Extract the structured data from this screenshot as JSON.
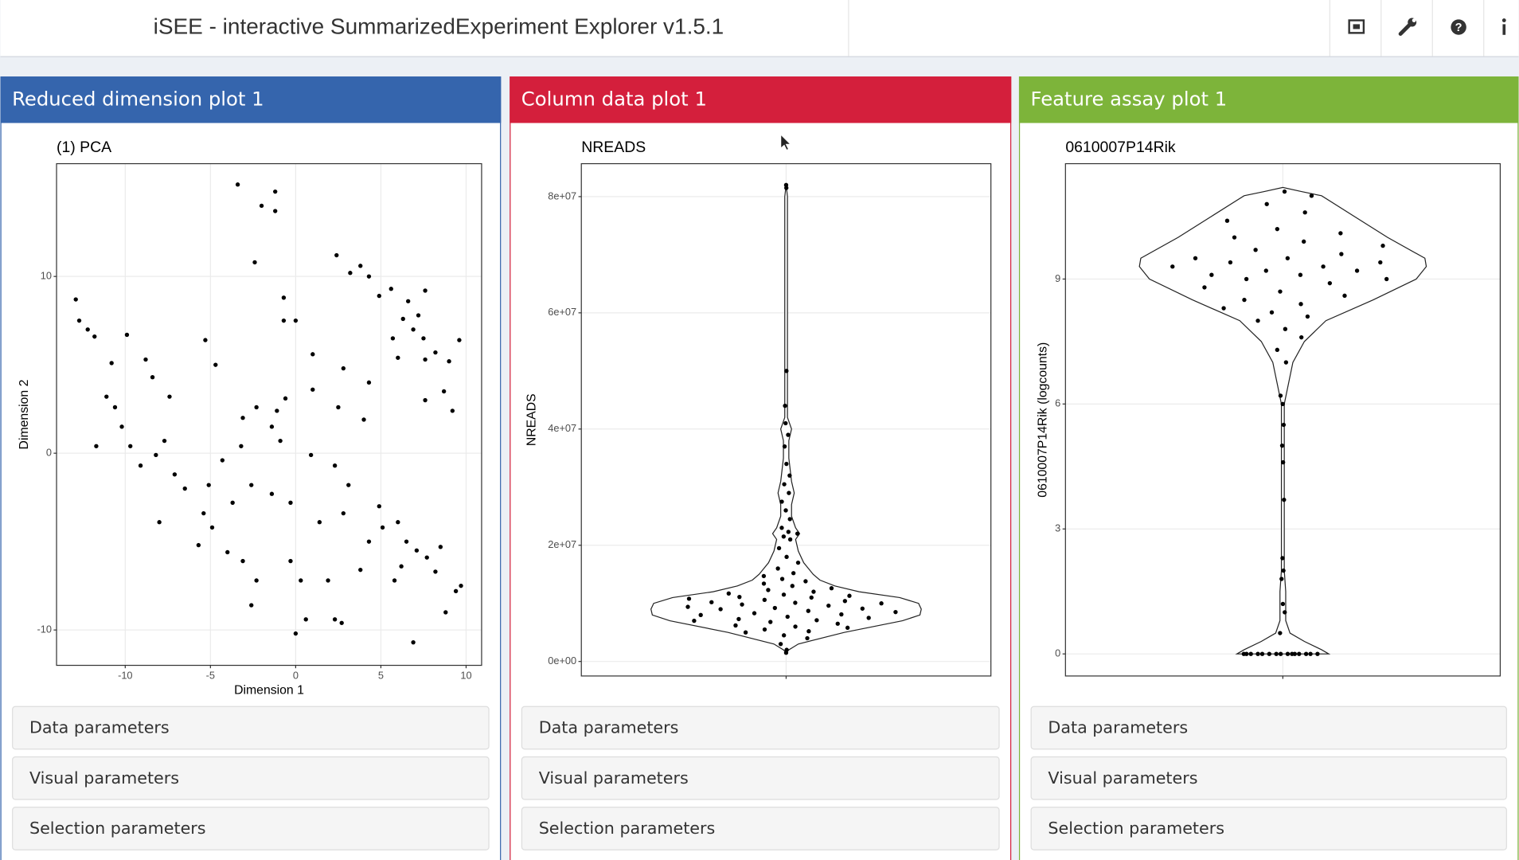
{
  "header": {
    "title": "iSEE - interactive SummarizedExperiment Explorer v1.5.1"
  },
  "panels": [
    {
      "title": "Reduced dimension plot 1",
      "color": "#3565ad",
      "chart": {
        "type": "scatter",
        "title": "(1) PCA",
        "x_label": "Dimension 1",
        "y_label": "Dimension 2",
        "xlim": [
          -14.03,
          10.91
        ],
        "ylim": [
          -12,
          16.38
        ],
        "xticks": [
          -10,
          -5,
          0,
          5,
          10
        ],
        "yticks": [
          -10,
          0,
          10
        ],
        "grid": true,
        "color": "#000000",
        "x": [
          -12.9,
          -12.7,
          -12.2,
          -11.8,
          -3.4,
          -1.2,
          -2.0,
          -1.2,
          -2.4,
          2.4,
          -0.7,
          -0.7,
          0,
          -5.3,
          -4.7,
          3.2,
          3.8,
          4.3,
          5.6,
          4.9,
          7.6,
          6.6,
          7.2,
          6.3,
          6.9,
          7.5,
          5.7,
          6.0,
          7.6,
          8.2,
          9.0,
          9.6,
          8.7,
          9.2,
          7.6,
          4.3,
          2.8,
          1.0,
          1.0,
          2.5,
          4.0,
          -0.6,
          -2.3,
          -3.1,
          -1.4,
          -0.9,
          -11.1,
          -10.8,
          -9.9,
          -10.6,
          -10.2,
          -9.7,
          -11.7,
          -9.1,
          -8.2,
          -8.8,
          -8.4,
          -7.4,
          -7.7,
          -7.1,
          -8.0,
          -6.5,
          -5.4,
          -4.9,
          -4.0,
          -5.7,
          -3.1,
          -2.3,
          -2.6,
          -0.3,
          0.3,
          0.6,
          0,
          2.3,
          2.7,
          1.9,
          1.4,
          -0.3,
          -1.4,
          -2.6,
          -3.7,
          0.9,
          2.3,
          3.1,
          2.8,
          4.3,
          3.8,
          4.9,
          6.0,
          6.5,
          7.1,
          7.7,
          8.5,
          8.2,
          9.4,
          9.7,
          8.8,
          6.9,
          6.2,
          5.8,
          5.1,
          -4.3,
          -5.1,
          -1.1,
          -3.2
        ],
        "y": [
          8.7,
          7.5,
          7.0,
          6.6,
          15.2,
          14.8,
          14.0,
          13.7,
          10.8,
          11.2,
          8.8,
          7.5,
          7.5,
          6.4,
          5.0,
          10.2,
          10.6,
          10.0,
          9.3,
          8.9,
          9.2,
          8.6,
          7.8,
          7.6,
          7.0,
          6.5,
          6.5,
          5.4,
          5.3,
          5.7,
          5.2,
          6.4,
          3.5,
          2.4,
          3.0,
          4.0,
          4.8,
          5.6,
          3.6,
          2.6,
          1.9,
          3.1,
          2.6,
          2.0,
          1.5,
          0.7,
          3.2,
          5.1,
          6.7,
          2.6,
          1.5,
          0.4,
          0.4,
          -0.7,
          -0.1,
          5.3,
          4.3,
          3.2,
          0.7,
          -1.2,
          -3.9,
          -2.0,
          -3.4,
          -4.2,
          -5.6,
          -5.2,
          -6.1,
          -7.2,
          -8.6,
          -6.1,
          -7.2,
          -9.4,
          -10.2,
          -9.4,
          -9.6,
          -7.2,
          -3.9,
          -2.8,
          -2.3,
          -1.8,
          -2.8,
          -0.1,
          -0.7,
          -1.8,
          -3.4,
          -5.0,
          -6.6,
          -3.0,
          -3.9,
          -5.0,
          -5.5,
          -5.9,
          -5.3,
          -6.7,
          -7.8,
          -7.5,
          -9.0,
          -10.7,
          -6.4,
          -7.2,
          -4.2,
          -0.4,
          -1.8,
          2.4,
          0.4
        ]
      },
      "sections": [
        "Data parameters",
        "Visual parameters",
        "Selection parameters"
      ]
    },
    {
      "title": "Column data plot 1",
      "color": "#d41f3c",
      "chart": {
        "type": "violin",
        "title": "NREADS",
        "y_label": "NREADS",
        "categories": [
          null
        ],
        "ylim": [
          -2500000,
          85670000
        ],
        "yticks": [
          {
            "value": 0,
            "label": "0e+00"
          },
          {
            "value": 20000000,
            "label": "2e+07"
          },
          {
            "value": 40000000,
            "label": "4e+07"
          },
          {
            "value": 60000000,
            "label": "6e+07"
          },
          {
            "value": 80000000,
            "label": "8e+07"
          }
        ],
        "grid": true,
        "color": "#000000",
        "density": {
          "y": [
            1500000,
            2000000,
            3000000,
            5000000,
            7000000,
            8000000,
            9000000,
            10000000,
            11000000,
            12000000,
            13000000,
            14000000,
            15000000,
            17000000,
            19000000,
            21000000,
            22000000,
            23000000,
            25000000,
            27000000,
            29000000,
            31000000,
            33000000,
            35000000,
            38000000,
            40000000,
            42000000,
            45000000,
            50000000,
            55000000,
            65000000,
            75000000,
            80000000,
            82000000
          ],
          "width": [
            0,
            0.02,
            0.09,
            0.43,
            0.86,
            0.99,
            1,
            0.98,
            0.84,
            0.54,
            0.36,
            0.25,
            0.2,
            0.13,
            0.09,
            0.07,
            0.1,
            0.07,
            0.04,
            0.04,
            0.06,
            0.04,
            0.03,
            0.02,
            0.02,
            0.04,
            0.01,
            0.01,
            0.01,
            0.01,
            0.01,
            0.01,
            0.01,
            0
          ]
        },
        "values": [
          1500000,
          2000000,
          3000000,
          4000000,
          4500000,
          5000000,
          5200000,
          5500000,
          5800000,
          6000000,
          6200000,
          6500000,
          6800000,
          7000000,
          7100000,
          7300000,
          7500000,
          7700000,
          8000000,
          8100000,
          8300000,
          8500000,
          8700000,
          9000000,
          9100000,
          9200000,
          9400000,
          9600000,
          9800000,
          10000000,
          10100000,
          10200000,
          10400000,
          10600000,
          10800000,
          11000000,
          11100000,
          11300000,
          11500000,
          11700000,
          12000000,
          12300000,
          12600000,
          13000000,
          13400000,
          13800000,
          14200000,
          14700000,
          15200000,
          16000000,
          17000000,
          18000000,
          19500000,
          21000000,
          21500000,
          22000000,
          22300000,
          23000000,
          24500000,
          26000000,
          27500000,
          29000000,
          30500000,
          32000000,
          34000000,
          37000000,
          39000000,
          41000000,
          44000000,
          50000000,
          82000000,
          81500000
        ]
      },
      "sections": [
        "Data parameters",
        "Visual parameters",
        "Selection parameters"
      ]
    },
    {
      "title": "Feature assay plot 1",
      "color": "#7db43a",
      "chart": {
        "type": "violin",
        "title": "0610007P14Rik",
        "y_label": "0610007P14Rik (logcounts)",
        "categories": [
          null
        ],
        "ylim": [
          -0.53,
          11.77
        ],
        "yticks": [
          0,
          3,
          6,
          9
        ],
        "grid": true,
        "color": "#000000",
        "density": {
          "y": [
            0,
            0.1,
            0.3,
            0.5,
            0.8,
            1.5,
            2,
            3,
            4,
            5,
            6,
            7,
            7.5,
            8,
            8.5,
            9,
            9.3,
            9.5,
            10,
            10.5,
            11,
            11.1,
            11.2
          ],
          "width": [
            0.32,
            0.27,
            0.15,
            0.05,
            0.02,
            0.02,
            0.01,
            0.01,
            0.01,
            0.01,
            0.01,
            0.07,
            0.15,
            0.3,
            0.63,
            0.93,
            1,
            0.99,
            0.73,
            0.5,
            0.27,
            0.13,
            0
          ]
        },
        "values": [
          0,
          0,
          0,
          0,
          0,
          0,
          0,
          0,
          0,
          0,
          0,
          0,
          0,
          0,
          0,
          0.5,
          1,
          1.2,
          1.8,
          2,
          2.3,
          3.7,
          4.6,
          5,
          5.5,
          6,
          6.2,
          7,
          7.3,
          7.6,
          7.8,
          8,
          8.1,
          8.2,
          8.3,
          8.4,
          8.5,
          8.6,
          8.7,
          8.8,
          8.9,
          9,
          9,
          9.1,
          9.1,
          9.2,
          9.2,
          9.3,
          9.3,
          9.4,
          9.4,
          9.5,
          9.5,
          9.6,
          9.7,
          9.8,
          9.9,
          10,
          10.1,
          10.2,
          10.4,
          10.6,
          10.8,
          11,
          11.1
        ]
      },
      "sections": [
        "Data parameters",
        "Visual parameters",
        "Selection parameters"
      ]
    }
  ]
}
